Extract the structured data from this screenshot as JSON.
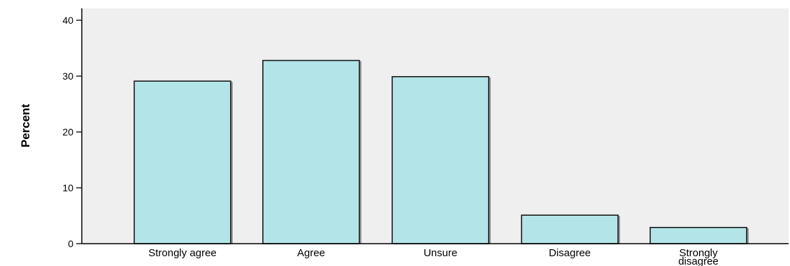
{
  "chart_data": {
    "type": "bar",
    "title": "",
    "xlabel": "",
    "ylabel": "Percent",
    "categories": [
      "Strongly agree",
      "Agree",
      "Unsure",
      "Disagree",
      "Strongly disagree"
    ],
    "category_label_lines": [
      [
        "Strongly agree"
      ],
      [
        "Agree"
      ],
      [
        "Unsure"
      ],
      [
        "Disagree"
      ],
      [
        "Strongly",
        "disagree"
      ]
    ],
    "values": [
      29.1,
      32.8,
      29.9,
      5.1,
      2.9
    ],
    "ylim": [
      0,
      42
    ],
    "yticks": [
      0,
      10,
      20,
      30,
      40
    ],
    "grid": false,
    "legend": "none",
    "colors": {
      "plot_background": "#efefef",
      "bar_fill": "#b3e5e8",
      "bar_stroke": "#1a1a1a",
      "axis": "#000000"
    }
  }
}
